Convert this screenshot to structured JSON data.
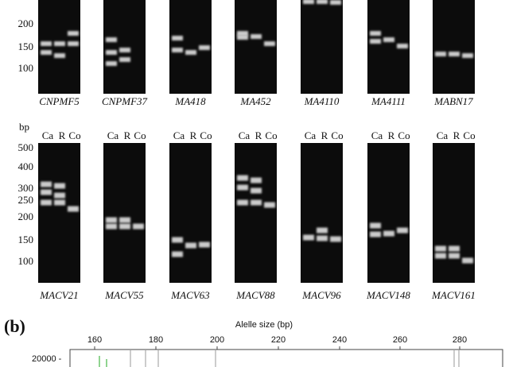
{
  "row1": {
    "y_labels": [
      "200",
      "150",
      "100"
    ],
    "panels": [
      "CNPMF5",
      "CNPMF37",
      "MA418",
      "MA452",
      "MA4110",
      "MA4111",
      "MABN17"
    ]
  },
  "row2": {
    "unit": "bp",
    "lanes": [
      "Ca",
      "R",
      "Co"
    ],
    "y_labels": [
      "500",
      "400",
      "300",
      "250",
      "200",
      "150",
      "100"
    ],
    "panels": [
      "MACV21",
      "MACV55",
      "MACV63",
      "MACV88",
      "MACV96",
      "MACV148",
      "MACV161"
    ]
  },
  "panel_b": {
    "label": "(b)",
    "x_title": "Alelle size (bp)",
    "x_ticks": [
      "160",
      "180",
      "200",
      "220",
      "240",
      "260",
      "280"
    ],
    "y_label": "20000 -"
  }
}
